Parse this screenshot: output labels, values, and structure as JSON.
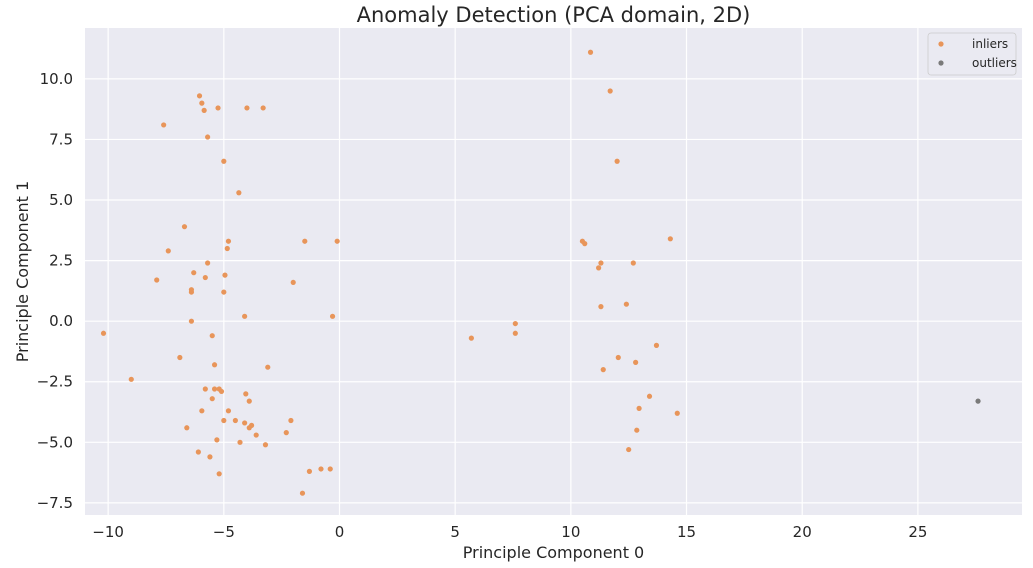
{
  "chart_data": {
    "type": "scatter",
    "title": "Anomaly Detection (PCA domain, 2D)",
    "xlabel": "Principle Component 0",
    "ylabel": "Principle Component 1",
    "xlim": [
      -11.0,
      29.5
    ],
    "ylim": [
      -8.0,
      12.1
    ],
    "xticks": [
      -10,
      -5,
      0,
      5,
      10,
      15,
      20,
      25
    ],
    "xtick_labels": [
      "−10",
      "−5",
      "0",
      "5",
      "10",
      "15",
      "20",
      "25"
    ],
    "yticks": [
      -7.5,
      -5.0,
      -2.5,
      0.0,
      2.5,
      5.0,
      7.5,
      10.0
    ],
    "ytick_labels": [
      "−7.5",
      "−5.0",
      "−2.5",
      "0.0",
      "2.5",
      "5.0",
      "7.5",
      "10.0"
    ],
    "grid": true,
    "legend_position": "top-right",
    "background": "#eaeaf2",
    "series": [
      {
        "name": "inliers",
        "color": "#e8955a",
        "points": [
          [
            -10.2,
            -0.5
          ],
          [
            -9.0,
            -2.4
          ],
          [
            -7.9,
            1.7
          ],
          [
            -7.6,
            8.1
          ],
          [
            -7.4,
            2.9
          ],
          [
            -6.9,
            -1.5
          ],
          [
            -6.7,
            3.9
          ],
          [
            -6.6,
            -4.4
          ],
          [
            -6.4,
            1.3
          ],
          [
            -6.4,
            1.2
          ],
          [
            -6.4,
            0.0
          ],
          [
            -6.3,
            2.0
          ],
          [
            -6.1,
            -5.4
          ],
          [
            -6.05,
            9.3
          ],
          [
            -5.95,
            9.0
          ],
          [
            -5.95,
            -3.7
          ],
          [
            -5.85,
            8.7
          ],
          [
            -5.8,
            1.8
          ],
          [
            -5.8,
            -2.8
          ],
          [
            -5.7,
            2.4
          ],
          [
            -5.7,
            7.6
          ],
          [
            -5.6,
            -5.6
          ],
          [
            -5.5,
            -3.2
          ],
          [
            -5.5,
            -0.6
          ],
          [
            -5.4,
            -2.8
          ],
          [
            -5.4,
            -1.8
          ],
          [
            -5.3,
            -4.9
          ],
          [
            -5.2,
            -2.8
          ],
          [
            -5.25,
            8.8
          ],
          [
            -5.2,
            -6.3
          ],
          [
            -5.1,
            -2.9
          ],
          [
            -5.0,
            1.2
          ],
          [
            -5.0,
            -4.1
          ],
          [
            -5.0,
            6.6
          ],
          [
            -4.95,
            1.9
          ],
          [
            -4.85,
            3.0
          ],
          [
            -4.8,
            3.3
          ],
          [
            -4.8,
            -3.7
          ],
          [
            -4.5,
            -4.1
          ],
          [
            -4.35,
            5.3
          ],
          [
            -4.3,
            -5.0
          ],
          [
            -4.1,
            0.2
          ],
          [
            -4.1,
            -4.2
          ],
          [
            -4.05,
            -3.0
          ],
          [
            -4.0,
            8.8
          ],
          [
            -3.9,
            -3.3
          ],
          [
            -3.9,
            -4.4
          ],
          [
            -3.8,
            -4.3
          ],
          [
            -3.6,
            -4.7
          ],
          [
            -3.3,
            8.8
          ],
          [
            -3.2,
            -5.1
          ],
          [
            -3.1,
            -1.9
          ],
          [
            -2.3,
            -4.6
          ],
          [
            -2.1,
            -4.1
          ],
          [
            -2.0,
            1.6
          ],
          [
            -1.6,
            -7.1
          ],
          [
            -1.5,
            3.3
          ],
          [
            -1.3,
            -6.2
          ],
          [
            -0.8,
            -6.1
          ],
          [
            -0.4,
            -6.1
          ],
          [
            -0.3,
            0.2
          ],
          [
            -0.1,
            3.3
          ],
          [
            5.7,
            -0.7
          ],
          [
            7.6,
            -0.1
          ],
          [
            7.6,
            -0.5
          ],
          [
            10.5,
            3.3
          ],
          [
            10.6,
            3.2
          ],
          [
            10.85,
            11.1
          ],
          [
            11.2,
            2.2
          ],
          [
            11.3,
            2.4
          ],
          [
            11.3,
            0.6
          ],
          [
            11.4,
            -2.0
          ],
          [
            11.7,
            9.5
          ],
          [
            12.0,
            6.6
          ],
          [
            12.05,
            -1.5
          ],
          [
            12.4,
            0.7
          ],
          [
            12.5,
            -5.3
          ],
          [
            12.7,
            2.4
          ],
          [
            12.8,
            -1.7
          ],
          [
            12.85,
            -4.5
          ],
          [
            12.95,
            -3.6
          ],
          [
            13.4,
            -3.1
          ],
          [
            13.7,
            -1.0
          ],
          [
            14.3,
            3.4
          ],
          [
            14.6,
            -3.8
          ]
        ]
      },
      {
        "name": "outliers",
        "color": "#7a7a7a",
        "points": [
          [
            27.6,
            -3.3
          ]
        ]
      }
    ]
  }
}
